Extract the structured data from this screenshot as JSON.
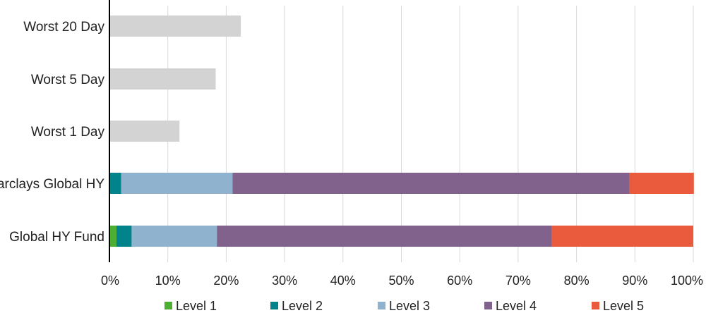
{
  "chart_data": {
    "type": "bar",
    "orientation": "horizontal",
    "stacked": true,
    "categories": [
      "Worst 20 Day",
      "Worst 5 Day",
      "Worst 1 Day",
      "Barclays Global HY",
      "Global HY Fund"
    ],
    "series": [
      {
        "name": "Level 1",
        "color": "#4caf32",
        "values": [
          0,
          0,
          0,
          0,
          1.2
        ]
      },
      {
        "name": "Level 2",
        "color": "#00838a",
        "values": [
          0,
          0,
          0,
          2.0,
          2.6
        ]
      },
      {
        "name": "Level 3",
        "color": "#8fb3cf",
        "values": [
          0,
          0,
          0,
          19.1,
          14.6
        ]
      },
      {
        "name": "Level 4",
        "color": "#80628d",
        "values": [
          0,
          0,
          0,
          68.0,
          57.4
        ]
      },
      {
        "name": "Level 5",
        "color": "#ea5a3c",
        "values": [
          0,
          0,
          0,
          11.0,
          24.2
        ]
      }
    ],
    "unlabeled_series": {
      "color": "#d3d3d3",
      "values": [
        22.5,
        18.2,
        12.0,
        0,
        0
      ]
    },
    "xlim": [
      0,
      100
    ],
    "xticks": [
      0,
      10,
      20,
      30,
      40,
      50,
      60,
      70,
      80,
      90,
      100
    ],
    "xtick_labels": [
      "0%",
      "10%",
      "20%",
      "30%",
      "40%",
      "50%",
      "60%",
      "70%",
      "80%",
      "90%",
      "100%"
    ],
    "grid": true,
    "legend_position": "bottom",
    "title": "",
    "xlabel": "",
    "ylabel": ""
  }
}
